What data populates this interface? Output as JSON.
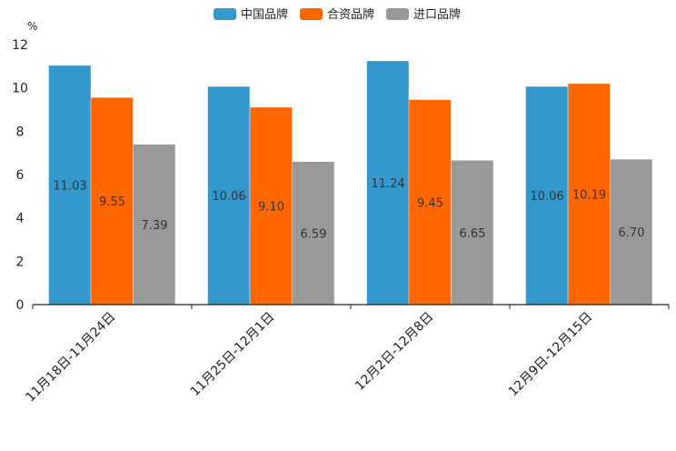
{
  "chart_data": {
    "type": "bar",
    "title": "",
    "ylabel": "%",
    "xlabel": "",
    "ylim": [
      0,
      12
    ],
    "yticks": [
      0,
      2,
      4,
      6,
      8,
      10,
      12
    ],
    "categories": [
      "11月18日-11月24日",
      "11月25日-12月1日",
      "12月2日-12月8日",
      "12月9日-12月15日"
    ],
    "series": [
      {
        "name": "中国品牌",
        "color": "#3399cc",
        "values": [
          11.03,
          10.06,
          11.24,
          10.06
        ],
        "labels": [
          "11.03",
          "10.06",
          "11.24",
          "10.06"
        ]
      },
      {
        "name": "合资品牌",
        "color": "#ff6600",
        "values": [
          9.55,
          9.1,
          9.45,
          10.19
        ],
        "labels": [
          "9.55",
          "9.10",
          "9.45",
          "10.19"
        ]
      },
      {
        "name": "进口品牌",
        "color": "#999999",
        "values": [
          7.39,
          6.59,
          6.65,
          6.7
        ],
        "labels": [
          "7.39",
          "6.59",
          "6.65",
          "6.70"
        ]
      }
    ],
    "legend": "top-center",
    "grid": false
  }
}
